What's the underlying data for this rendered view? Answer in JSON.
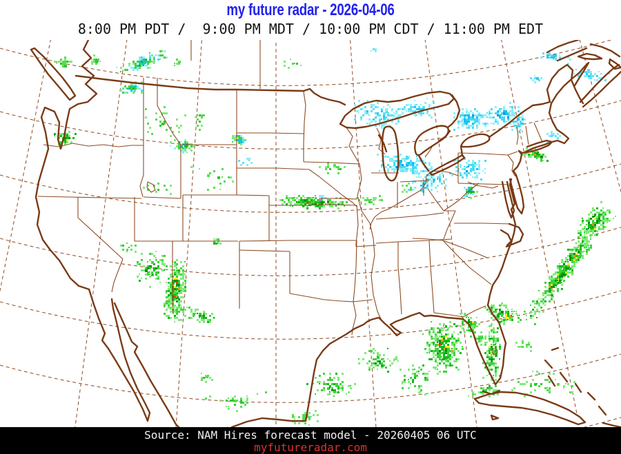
{
  "header": {
    "title": "my future radar - 2026-04-06",
    "title_color": "#2222ee",
    "subtitle": "8:00 PM PDT /  9:00 PM MDT / 10:00 PM CDT / 11:00 PM EDT",
    "subtitle_color": "#141414"
  },
  "footer": {
    "source": "Source: NAM Hires forecast model - 20260405 06 UTC",
    "source_color": "#f2f2f2",
    "website": "myfutureradar.com",
    "website_color": "#e03030",
    "bg": "#000000"
  },
  "map": {
    "background": "#ffffff",
    "colors": {
      "state_line": "#8d4a22",
      "coast_line": "#7a3b16",
      "graticule": "#8d4a22"
    },
    "palettes": {
      "rain_hot": {
        "outer": [
          [
            "#80ea7a",
            5
          ],
          [
            "#3fd33b",
            3
          ],
          [
            "#14b81a",
            1.2
          ]
        ],
        "core": [
          [
            "#3fd33b",
            2.5
          ],
          [
            "#14b81a",
            2.5
          ],
          [
            "#0b9113",
            1.5
          ],
          [
            "#f6ee1e",
            0.55
          ],
          [
            "#f89b10",
            0.3
          ],
          [
            "#ee3b14",
            0.1
          ]
        ]
      },
      "rain": {
        "outer": [
          [
            "#80ea7a",
            5
          ],
          [
            "#3fd33b",
            2.2
          ],
          [
            "#14b81a",
            0.6
          ]
        ],
        "core": [
          [
            "#3fd33b",
            3
          ],
          [
            "#14b81a",
            2
          ],
          [
            "#0b9113",
            0.8
          ],
          [
            "#f6ee1e",
            0.12
          ]
        ]
      },
      "rain_light": {
        "outer": [
          [
            "#80ea7a",
            4
          ],
          [
            "#55dd4e",
            1.5
          ]
        ],
        "core": [
          [
            "#55dd4e",
            2
          ],
          [
            "#2cc82c",
            1
          ]
        ]
      },
      "snow": {
        "outer": [
          [
            "#8aedfa",
            5
          ],
          [
            "#49d9f5",
            2
          ]
        ],
        "core": [
          [
            "#49d9f5",
            3
          ],
          [
            "#14c1ef",
            2
          ],
          [
            "#0a9ce2",
            0.9
          ]
        ]
      },
      "snow_light": {
        "outer": [
          [
            "#8aedfa",
            4
          ],
          [
            "#5ce0f6",
            1.5
          ]
        ],
        "core": [
          [
            "#5ce0f6",
            2
          ],
          [
            "#24c9f0",
            1
          ]
        ]
      },
      "mixed": {
        "outer": [
          [
            "#80ea7a",
            3
          ],
          [
            "#8aedfa",
            2
          ],
          [
            "#3fd33b",
            1.5
          ],
          [
            "#49d9f5",
            1
          ]
        ],
        "core": [
          [
            "#3fd33b",
            2
          ],
          [
            "#14c1ef",
            2
          ],
          [
            "#14b81a",
            1
          ]
        ]
      },
      "purple": {
        "outer": [
          [
            "#bd6fe8",
            1
          ]
        ],
        "core": [
          [
            "#bd6fe8",
            1
          ]
        ]
      }
    },
    "clusters": [
      [
        "bc-idaho-band",
        205,
        32,
        40,
        10,
        -18,
        100,
        "mixed"
      ],
      [
        "idaho-border-cluster",
        190,
        68,
        17,
        9,
        -10,
        55,
        "mixed"
      ],
      [
        "puget-sound-rain",
        93,
        142,
        17,
        15,
        0,
        45,
        "rain"
      ],
      [
        "wa-border-specks",
        92,
        32,
        14,
        9,
        0,
        28,
        "rain_light"
      ],
      [
        "bc-coast-specks",
        138,
        28,
        12,
        8,
        -20,
        18,
        "rain_light"
      ],
      [
        "idaho-montana-scatter",
        240,
        118,
        34,
        26,
        0,
        30,
        "rain_light"
      ],
      [
        "montana-cluster",
        263,
        152,
        19,
        10,
        0,
        45,
        "mixed"
      ],
      [
        "dakota-cluster",
        345,
        143,
        12,
        8,
        0,
        30,
        "mixed"
      ],
      [
        "wyoming-ne-specks",
        287,
        112,
        10,
        20,
        0,
        14,
        "rain_light"
      ],
      [
        "sd-cyan-specks",
        355,
        177,
        14,
        8,
        0,
        10,
        "snow_light"
      ],
      [
        "bc-speck",
        255,
        30,
        8,
        8,
        0,
        8,
        "rain_light"
      ],
      [
        "superior-nw-speck",
        540,
        13,
        5,
        3,
        0,
        5,
        "snow_light"
      ],
      [
        "wyoming-specks",
        310,
        200,
        40,
        28,
        0,
        16,
        "rain_light"
      ],
      [
        "utah-specks",
        228,
        212,
        24,
        16,
        0,
        12,
        "rain_light"
      ],
      [
        "new-mexico-core",
        253,
        362,
        15,
        48,
        4,
        280,
        "rain_hot"
      ],
      [
        "new-mexico-west",
        220,
        330,
        28,
        28,
        0,
        70,
        "rain"
      ],
      [
        "new-mexico-south-tail",
        288,
        398,
        26,
        11,
        12,
        50,
        "rain"
      ],
      [
        "arizona-specks",
        183,
        300,
        18,
        12,
        0,
        14,
        "rain_light"
      ],
      [
        "colorado-ne-speck",
        313,
        292,
        9,
        5,
        0,
        12,
        "rain"
      ],
      [
        "plains-band",
        452,
        234,
        55,
        9,
        2,
        170,
        "rain_hot"
      ],
      [
        "plains-cyan",
        465,
        227,
        8,
        4,
        0,
        14,
        "snow"
      ],
      [
        "plains-purple",
        462,
        229,
        2,
        2,
        0,
        3,
        "purple"
      ],
      [
        "plains-east-tail",
        530,
        231,
        26,
        5,
        0,
        26,
        "rain_light"
      ],
      [
        "minnesota-specks",
        482,
        184,
        28,
        10,
        0,
        18,
        "rain_light"
      ],
      [
        "upper-michigan-snow",
        548,
        108,
        46,
        22,
        8,
        120,
        "snow_light"
      ],
      [
        "superior-east-snow",
        606,
        98,
        30,
        14,
        5,
        55,
        "snow_light"
      ],
      [
        "ottawa-valley-snow",
        680,
        113,
        26,
        16,
        0,
        110,
        "snow"
      ],
      [
        "wisconsin-snow-band",
        585,
        180,
        42,
        14,
        6,
        140,
        "snow"
      ],
      [
        "lower-michigan-snow",
        625,
        200,
        30,
        12,
        5,
        50,
        "snow_light"
      ],
      [
        "ontario-ny-snow",
        682,
        186,
        28,
        16,
        0,
        75,
        "snow"
      ],
      [
        "adirondack-snow",
        725,
        108,
        30,
        16,
        -12,
        85,
        "snow"
      ],
      [
        "vermont-snow",
        750,
        118,
        14,
        14,
        0,
        45,
        "snow"
      ],
      [
        "stlawrence-streaks",
        800,
        24,
        28,
        7,
        5,
        26,
        "snow_light"
      ],
      [
        "maine-west-streaks",
        778,
        55,
        10,
        8,
        0,
        12,
        "snow_light"
      ],
      [
        "connecticut-green",
        775,
        165,
        21,
        9,
        18,
        60,
        "rain_hot"
      ],
      [
        "maine-coast-specks",
        800,
        140,
        14,
        10,
        0,
        12,
        "snow_light"
      ],
      [
        "nova-scotia-snow",
        857,
        50,
        28,
        8,
        8,
        40,
        "snow_light"
      ],
      [
        "ohio-valley-specks",
        612,
        212,
        24,
        10,
        0,
        22,
        "snow_light"
      ],
      [
        "missouri-specks",
        590,
        213,
        16,
        8,
        0,
        10,
        "rain_light"
      ],
      [
        "pa-md-specks",
        680,
        218,
        11,
        13,
        0,
        30,
        "mixed"
      ],
      [
        "gulf-coast-blob",
        642,
        445,
        30,
        42,
        -10,
        280,
        "rain_hot"
      ],
      [
        "gulf-coast-arc",
        680,
        408,
        20,
        9,
        30,
        50,
        "rain"
      ],
      [
        "florida-band",
        712,
        452,
        13,
        45,
        5,
        130,
        "rain_hot"
      ],
      [
        "florida-keys",
        706,
        505,
        22,
        8,
        0,
        24,
        "rain"
      ],
      [
        "gulf-west-1",
        480,
        500,
        36,
        20,
        0,
        75,
        "rain"
      ],
      [
        "gulf-central",
        546,
        464,
        30,
        18,
        0,
        60,
        "rain"
      ],
      [
        "gulf-south",
        600,
        492,
        26,
        24,
        0,
        55,
        "rain"
      ],
      [
        "texas-coast-specks",
        440,
        546,
        26,
        12,
        0,
        35,
        "rain_light"
      ],
      [
        "mexico-specks",
        340,
        524,
        46,
        20,
        0,
        30,
        "rain_light"
      ],
      [
        "mexico-interior-specks",
        297,
        490,
        13,
        8,
        0,
        12,
        "rain_light"
      ],
      [
        "atlantic-band",
        818,
        330,
        13,
        100,
        36,
        430,
        "rain_hot"
      ],
      [
        "atlantic-band-north",
        860,
        264,
        20,
        33,
        38,
        150,
        "rain_hot"
      ],
      [
        "carolina-offshore",
        728,
        396,
        28,
        16,
        20,
        95,
        "rain_hot"
      ],
      [
        "carolina-trail",
        695,
        432,
        18,
        8,
        25,
        26,
        "rain_light"
      ],
      [
        "bahamas-specks",
        790,
        498,
        60,
        20,
        0,
        45,
        "rain_light"
      ],
      [
        "florida-east-specks",
        760,
        440,
        16,
        10,
        0,
        16,
        "rain_light"
      ],
      [
        "georgia-specks",
        678,
        418,
        14,
        8,
        0,
        14,
        "rain_light"
      ],
      [
        "cuba-north-specks",
        700,
        512,
        30,
        8,
        0,
        14,
        "rain_light"
      ],
      [
        "saskatchewan-specks",
        420,
        33,
        25,
        8,
        0,
        8,
        "rain_light"
      ]
    ]
  }
}
